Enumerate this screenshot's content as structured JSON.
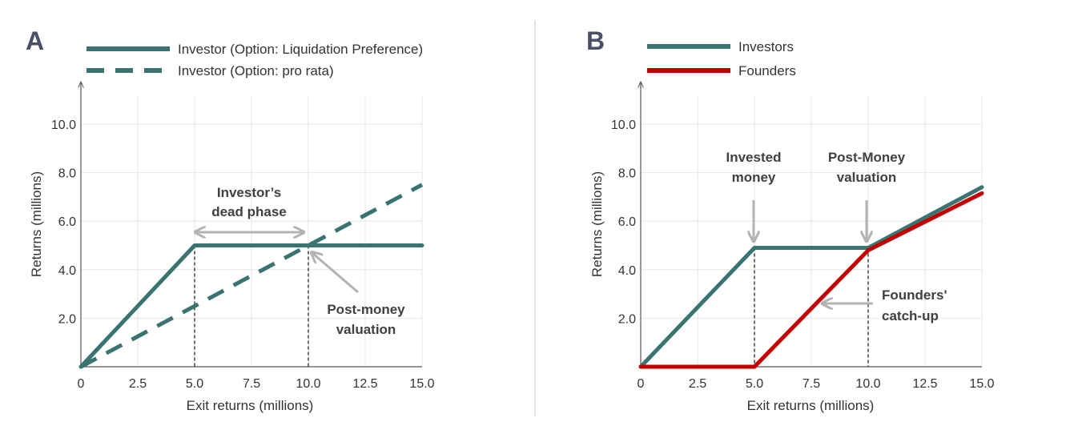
{
  "colors": {
    "teal": "#3a7472",
    "red": "#c40000",
    "grey_arrow": "#b3b3b3",
    "grid": "#e6e6e6",
    "divider": "#c8c8c8"
  },
  "chart_data": [
    {
      "panel": "A",
      "type": "line",
      "xlabel": "Exit returns (millions)",
      "ylabel": "Returns (millions)",
      "xlim": [
        0,
        15
      ],
      "ylim": [
        0,
        11.5
      ],
      "xticks": [
        "0",
        "2.5",
        "5.0",
        "7.5",
        "10.0",
        "12.5",
        "15.0"
      ],
      "xtick_values": [
        0,
        2.5,
        5,
        7.5,
        10,
        12.5,
        15
      ],
      "yticks": [
        "2.0",
        "4.0",
        "6.0",
        "8.0",
        "10.0"
      ],
      "ytick_values": [
        2,
        4,
        6,
        8,
        10
      ],
      "legend": [
        "Investor (Option: Liquidation Preference)",
        "Investor (Option: pro rata)"
      ],
      "series": [
        {
          "name": "Investor (Option: Liquidation Preference)",
          "style": "solid",
          "color": "teal",
          "x": [
            0,
            5,
            15
          ],
          "y": [
            0,
            5,
            5
          ]
        },
        {
          "name": "Investor (Option: pro rata)",
          "style": "dashed",
          "color": "teal",
          "x": [
            0,
            15
          ],
          "y": [
            0,
            7.5
          ]
        }
      ],
      "vlines": [
        5,
        10
      ],
      "annotations": [
        {
          "lines": [
            "Investor’s",
            "dead phase"
          ]
        },
        {
          "lines": [
            "Post-money",
            "valuation"
          ]
        }
      ]
    },
    {
      "panel": "B",
      "type": "line",
      "xlabel": "Exit returns (millions)",
      "ylabel": "Returns (millions)",
      "xlim": [
        0,
        15
      ],
      "ylim": [
        0,
        11.5
      ],
      "xticks": [
        "0",
        "2.5",
        "5.0",
        "7.5",
        "10.0",
        "12.5",
        "15.0"
      ],
      "xtick_values": [
        0,
        2.5,
        5,
        7.5,
        10,
        12.5,
        15
      ],
      "yticks": [
        "2.0",
        "4.0",
        "6.0",
        "8.0",
        "10.0"
      ],
      "ytick_values": [
        2,
        4,
        6,
        8,
        10
      ],
      "legend": [
        "Investors",
        "Founders"
      ],
      "series": [
        {
          "name": "Investors",
          "style": "solid",
          "color": "teal",
          "x": [
            0,
            5,
            10,
            15
          ],
          "y": [
            0,
            4.9,
            4.9,
            7.4
          ]
        },
        {
          "name": "Founders",
          "style": "solid",
          "color": "red",
          "x": [
            0,
            5,
            10,
            15
          ],
          "y": [
            0,
            0,
            4.8,
            7.15
          ]
        }
      ],
      "vlines": [
        5,
        10
      ],
      "annotations": [
        {
          "lines": [
            "Invested",
            "money"
          ]
        },
        {
          "lines": [
            "Post-Money",
            "valuation"
          ]
        },
        {
          "lines": [
            "Founders'",
            "catch-up"
          ]
        }
      ]
    }
  ]
}
